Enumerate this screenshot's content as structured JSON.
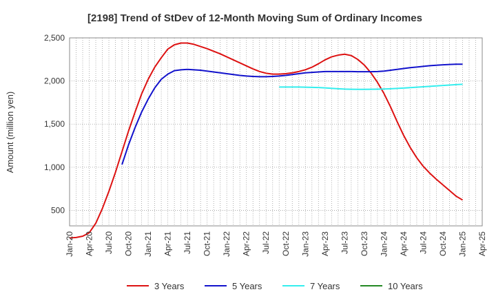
{
  "chart_data": {
    "type": "line",
    "title": "[2198]  Trend of StDev of 12-Month Moving Sum of Ordinary Incomes",
    "ylabel": "Amount (million yen)",
    "xlabel": "",
    "ylim": [
      320,
      2500
    ],
    "yticks": [
      500,
      1000,
      1500,
      2000,
      2500
    ],
    "ytick_labels": [
      "500",
      "1,000",
      "1,500",
      "2,000",
      "2,500"
    ],
    "x_range": [
      "2020-01",
      "2025-04"
    ],
    "xtick_labels": [
      "Jan-20",
      "Apr-20",
      "Jul-20",
      "Oct-20",
      "Jan-21",
      "Apr-21",
      "Jul-21",
      "Oct-21",
      "Jan-22",
      "Apr-22",
      "Jul-22",
      "Oct-22",
      "Jan-23",
      "Apr-23",
      "Jul-23",
      "Oct-23",
      "Jan-24",
      "Apr-24",
      "Jul-24",
      "Oct-24",
      "Jan-25",
      "Apr-25"
    ],
    "grid": true,
    "legend_position": "bottom",
    "series": [
      {
        "name": "3 Years",
        "color": "#dd1111",
        "points": [
          [
            "2020-01",
            180
          ],
          [
            "2020-02",
            185
          ],
          [
            "2020-03",
            200
          ],
          [
            "2020-04",
            240
          ],
          [
            "2020-05",
            350
          ],
          [
            "2020-06",
            520
          ],
          [
            "2020-07",
            720
          ],
          [
            "2020-08",
            940
          ],
          [
            "2020-09",
            1180
          ],
          [
            "2020-10",
            1420
          ],
          [
            "2020-11",
            1640
          ],
          [
            "2020-12",
            1850
          ],
          [
            "2021-01",
            2020
          ],
          [
            "2021-02",
            2160
          ],
          [
            "2021-03",
            2270
          ],
          [
            "2021-04",
            2370
          ],
          [
            "2021-05",
            2420
          ],
          [
            "2021-06",
            2440
          ],
          [
            "2021-07",
            2440
          ],
          [
            "2021-08",
            2425
          ],
          [
            "2021-09",
            2400
          ],
          [
            "2021-10",
            2375
          ],
          [
            "2021-11",
            2345
          ],
          [
            "2021-12",
            2315
          ],
          [
            "2022-01",
            2280
          ],
          [
            "2022-02",
            2245
          ],
          [
            "2022-03",
            2210
          ],
          [
            "2022-04",
            2175
          ],
          [
            "2022-05",
            2140
          ],
          [
            "2022-06",
            2110
          ],
          [
            "2022-07",
            2090
          ],
          [
            "2022-08",
            2080
          ],
          [
            "2022-09",
            2080
          ],
          [
            "2022-10",
            2085
          ],
          [
            "2022-11",
            2095
          ],
          [
            "2022-12",
            2110
          ],
          [
            "2023-01",
            2130
          ],
          [
            "2023-02",
            2160
          ],
          [
            "2023-03",
            2200
          ],
          [
            "2023-04",
            2245
          ],
          [
            "2023-05",
            2280
          ],
          [
            "2023-06",
            2300
          ],
          [
            "2023-07",
            2310
          ],
          [
            "2023-08",
            2295
          ],
          [
            "2023-09",
            2250
          ],
          [
            "2023-10",
            2185
          ],
          [
            "2023-11",
            2095
          ],
          [
            "2023-12",
            1985
          ],
          [
            "2024-01",
            1855
          ],
          [
            "2024-02",
            1700
          ],
          [
            "2024-03",
            1530
          ],
          [
            "2024-04",
            1370
          ],
          [
            "2024-05",
            1230
          ],
          [
            "2024-06",
            1110
          ],
          [
            "2024-07",
            1010
          ],
          [
            "2024-08",
            930
          ],
          [
            "2024-09",
            860
          ],
          [
            "2024-10",
            795
          ],
          [
            "2024-11",
            730
          ],
          [
            "2024-12",
            665
          ],
          [
            "2025-01",
            620
          ]
        ]
      },
      {
        "name": "5 Years",
        "color": "#1111cc",
        "points": [
          [
            "2020-09",
            1030
          ],
          [
            "2020-10",
            1260
          ],
          [
            "2020-11",
            1460
          ],
          [
            "2020-12",
            1640
          ],
          [
            "2021-01",
            1790
          ],
          [
            "2021-02",
            1920
          ],
          [
            "2021-03",
            2020
          ],
          [
            "2021-04",
            2080
          ],
          [
            "2021-05",
            2120
          ],
          [
            "2021-06",
            2130
          ],
          [
            "2021-07",
            2135
          ],
          [
            "2021-08",
            2130
          ],
          [
            "2021-09",
            2125
          ],
          [
            "2021-10",
            2115
          ],
          [
            "2021-11",
            2105
          ],
          [
            "2021-12",
            2095
          ],
          [
            "2022-01",
            2085
          ],
          [
            "2022-02",
            2075
          ],
          [
            "2022-03",
            2065
          ],
          [
            "2022-04",
            2058
          ],
          [
            "2022-05",
            2053
          ],
          [
            "2022-06",
            2050
          ],
          [
            "2022-07",
            2050
          ],
          [
            "2022-08",
            2053
          ],
          [
            "2022-09",
            2058
          ],
          [
            "2022-10",
            2065
          ],
          [
            "2022-11",
            2075
          ],
          [
            "2022-12",
            2085
          ],
          [
            "2023-01",
            2095
          ],
          [
            "2023-02",
            2100
          ],
          [
            "2023-03",
            2105
          ],
          [
            "2023-04",
            2110
          ],
          [
            "2023-05",
            2110
          ],
          [
            "2023-06",
            2110
          ],
          [
            "2023-07",
            2110
          ],
          [
            "2023-08",
            2110
          ],
          [
            "2023-09",
            2108
          ],
          [
            "2023-10",
            2108
          ],
          [
            "2023-11",
            2108
          ],
          [
            "2023-12",
            2110
          ],
          [
            "2024-01",
            2115
          ],
          [
            "2024-02",
            2125
          ],
          [
            "2024-03",
            2135
          ],
          [
            "2024-04",
            2145
          ],
          [
            "2024-05",
            2155
          ],
          [
            "2024-06",
            2162
          ],
          [
            "2024-07",
            2170
          ],
          [
            "2024-08",
            2178
          ],
          [
            "2024-09",
            2183
          ],
          [
            "2024-10",
            2188
          ],
          [
            "2024-11",
            2192
          ],
          [
            "2024-12",
            2195
          ],
          [
            "2025-01",
            2195
          ]
        ]
      },
      {
        "name": "7 Years",
        "color": "#33eeee",
        "points": [
          [
            "2022-09",
            1930
          ],
          [
            "2022-10",
            1930
          ],
          [
            "2022-11",
            1930
          ],
          [
            "2022-12",
            1930
          ],
          [
            "2023-01",
            1928
          ],
          [
            "2023-02",
            1926
          ],
          [
            "2023-03",
            1924
          ],
          [
            "2023-04",
            1920
          ],
          [
            "2023-05",
            1915
          ],
          [
            "2023-06",
            1910
          ],
          [
            "2023-07",
            1906
          ],
          [
            "2023-08",
            1904
          ],
          [
            "2023-09",
            1903
          ],
          [
            "2023-10",
            1903
          ],
          [
            "2023-11",
            1904
          ],
          [
            "2023-12",
            1905
          ],
          [
            "2024-01",
            1907
          ],
          [
            "2024-02",
            1910
          ],
          [
            "2024-03",
            1914
          ],
          [
            "2024-04",
            1918
          ],
          [
            "2024-05",
            1923
          ],
          [
            "2024-06",
            1928
          ],
          [
            "2024-07",
            1933
          ],
          [
            "2024-08",
            1938
          ],
          [
            "2024-09",
            1943
          ],
          [
            "2024-10",
            1948
          ],
          [
            "2024-11",
            1953
          ],
          [
            "2024-12",
            1958
          ],
          [
            "2025-01",
            1962
          ]
        ]
      },
      {
        "name": "10 Years",
        "color": "#228822",
        "points": []
      }
    ]
  }
}
